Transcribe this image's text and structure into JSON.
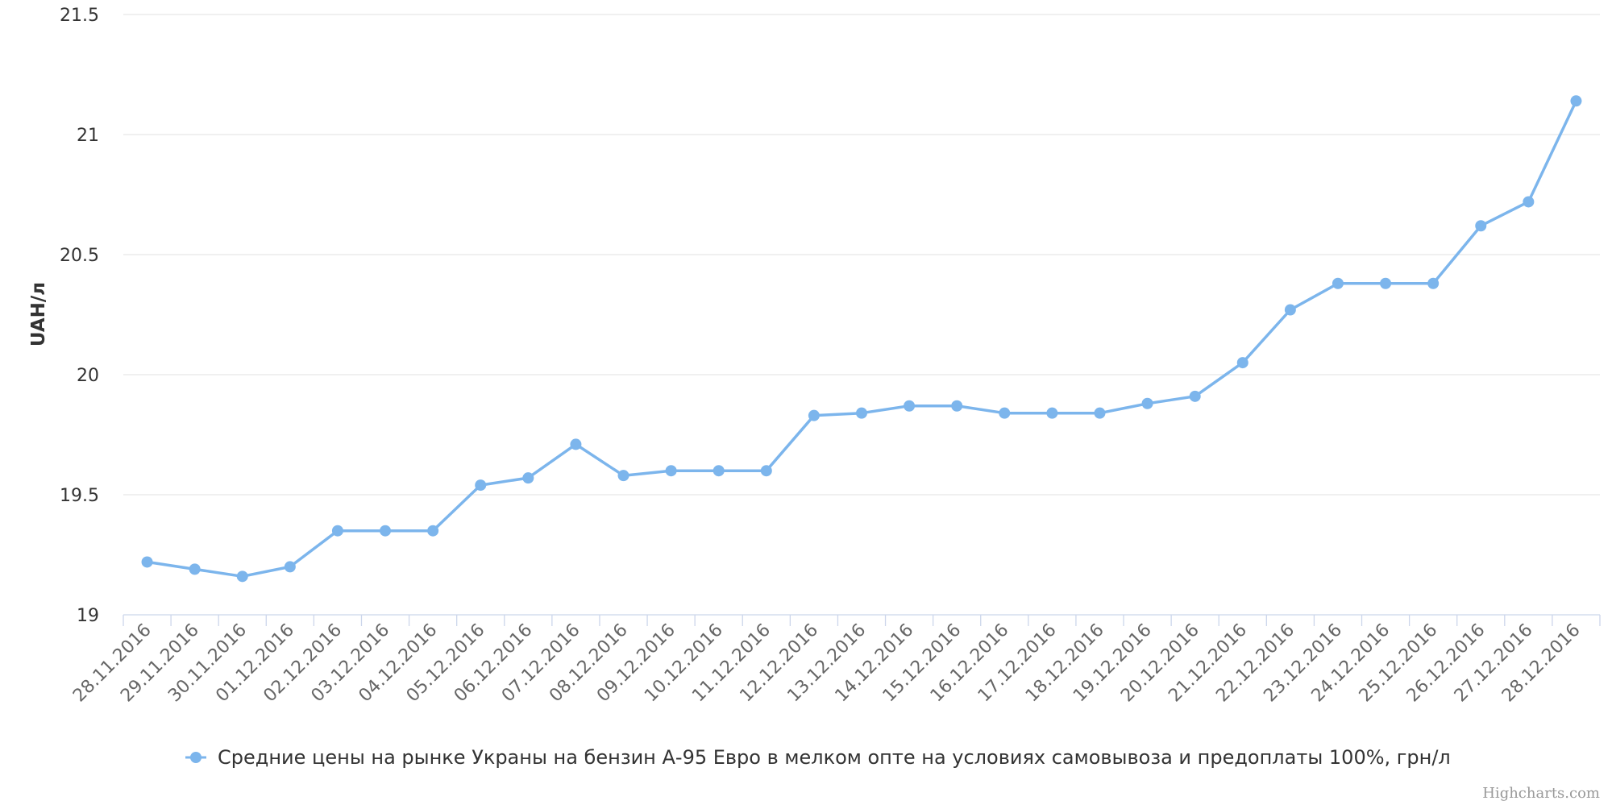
{
  "chart_data": {
    "type": "line",
    "x": [
      "28.11.2016",
      "29.11.2016",
      "30.11.2016",
      "01.12.2016",
      "02.12.2016",
      "03.12.2016",
      "04.12.2016",
      "05.12.2016",
      "06.12.2016",
      "07.12.2016",
      "08.12.2016",
      "09.12.2016",
      "10.12.2016",
      "11.12.2016",
      "12.12.2016",
      "13.12.2016",
      "14.12.2016",
      "15.12.2016",
      "16.12.2016",
      "17.12.2016",
      "18.12.2016",
      "19.12.2016",
      "20.12.2016",
      "21.12.2016",
      "22.12.2016",
      "23.12.2016",
      "24.12.2016",
      "25.12.2016",
      "26.12.2016",
      "27.12.2016",
      "28.12.2016"
    ],
    "series": [
      {
        "name": "Средние цены на рынке Украны на бензин А-95 Евро в мелком опте на условиях самовывоза и предоплаты 100%, грн/л",
        "color": "#7cb5ec",
        "values": [
          19.22,
          19.19,
          19.16,
          19.2,
          19.35,
          19.35,
          19.35,
          19.54,
          19.57,
          19.71,
          19.58,
          19.6,
          19.6,
          19.6,
          19.83,
          19.84,
          19.87,
          19.87,
          19.84,
          19.84,
          19.84,
          19.88,
          19.91,
          20.05,
          20.27,
          20.38,
          20.38,
          20.38,
          20.62,
          20.72,
          21.14
        ]
      }
    ],
    "ylabel": "UAH/л",
    "xlabel": "",
    "title": "",
    "ylim": [
      19,
      21.5
    ],
    "yticks": [
      "19",
      "19.5",
      "20",
      "20.5",
      "21",
      "21.5"
    ],
    "grid": true,
    "legend": "bottom-center"
  },
  "credits": "Highcharts.com"
}
